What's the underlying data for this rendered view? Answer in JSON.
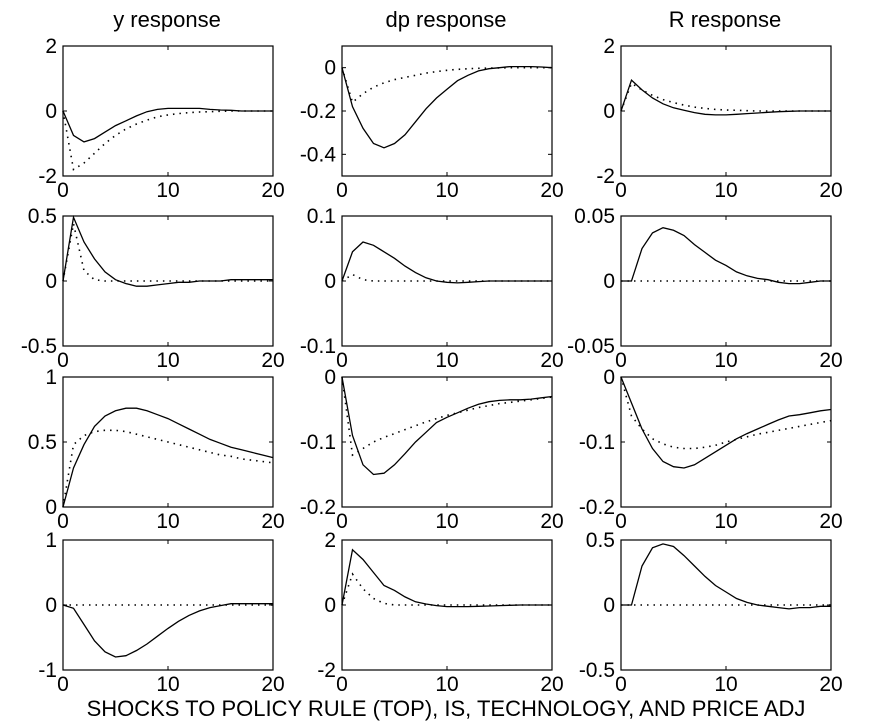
{
  "figure": {
    "column_titles": [
      "y response",
      "dp response",
      "R response"
    ],
    "caption": "SHOCKS TO POLICY RULE (TOP), IS, TECHNOLOGY, AND PRICE ADJ"
  },
  "chart_data": [
    {
      "type": "line",
      "title": "y response",
      "xlim": [
        0,
        20
      ],
      "ylim": [
        -2,
        2
      ],
      "xticks": [
        0,
        10,
        20
      ],
      "yticks": [
        2,
        0,
        -2
      ],
      "ytick_labels": [
        "2",
        "0",
        "-2"
      ],
      "x": [
        0,
        1,
        2,
        3,
        4,
        5,
        6,
        7,
        8,
        9,
        10,
        11,
        12,
        13,
        14,
        15,
        16,
        17,
        18,
        19,
        20
      ],
      "series": [
        {
          "style": "solid",
          "values": [
            0,
            -0.75,
            -0.95,
            -0.85,
            -0.65,
            -0.45,
            -0.3,
            -0.15,
            -0.02,
            0.05,
            0.08,
            0.08,
            0.08,
            0.08,
            0.05,
            0.03,
            0.02,
            0,
            0,
            0,
            0
          ]
        },
        {
          "style": "dotted",
          "values": [
            0,
            -1.8,
            -1.6,
            -1.3,
            -1,
            -0.75,
            -0.55,
            -0.4,
            -0.28,
            -0.18,
            -0.12,
            -0.08,
            -0.05,
            -0.03,
            -0.02,
            -0.01,
            0,
            0,
            0,
            0,
            0
          ]
        }
      ]
    },
    {
      "type": "line",
      "title": "dp response",
      "xlim": [
        0,
        20
      ],
      "ylim": [
        -0.5,
        0.1
      ],
      "xticks": [
        0,
        10,
        20
      ],
      "yticks": [
        0,
        -0.2,
        -0.4
      ],
      "ytick_labels": [
        "0",
        "-0.2",
        "-0.4"
      ],
      "x": [
        0,
        1,
        2,
        3,
        4,
        5,
        6,
        7,
        8,
        9,
        10,
        11,
        12,
        13,
        14,
        15,
        16,
        17,
        18,
        19,
        20
      ],
      "series": [
        {
          "style": "solid",
          "values": [
            0,
            -0.18,
            -0.28,
            -0.35,
            -0.37,
            -0.35,
            -0.31,
            -0.25,
            -0.19,
            -0.14,
            -0.1,
            -0.06,
            -0.035,
            -0.015,
            -0.005,
            0,
            0.005,
            0.005,
            0.005,
            0.003,
            0
          ]
        },
        {
          "style": "dotted",
          "values": [
            0,
            -0.16,
            -0.12,
            -0.09,
            -0.07,
            -0.055,
            -0.045,
            -0.035,
            -0.025,
            -0.018,
            -0.012,
            -0.008,
            -0.005,
            -0.003,
            -0.002,
            -0.001,
            0,
            0,
            0,
            0,
            0
          ]
        }
      ]
    },
    {
      "type": "line",
      "title": "R response",
      "xlim": [
        0,
        20
      ],
      "ylim": [
        -2,
        2
      ],
      "xticks": [
        0,
        10,
        20
      ],
      "yticks": [
        2,
        0,
        -2
      ],
      "ytick_labels": [
        "2",
        "0",
        "-2"
      ],
      "x": [
        0,
        1,
        2,
        3,
        4,
        5,
        6,
        7,
        8,
        9,
        10,
        11,
        12,
        13,
        14,
        15,
        16,
        17,
        18,
        19,
        20
      ],
      "series": [
        {
          "style": "solid",
          "values": [
            0,
            0.95,
            0.65,
            0.4,
            0.22,
            0.1,
            0.02,
            -0.05,
            -0.1,
            -0.12,
            -0.12,
            -0.1,
            -0.08,
            -0.06,
            -0.04,
            -0.02,
            -0.01,
            0,
            0,
            0,
            0
          ]
        },
        {
          "style": "dotted",
          "values": [
            0,
            0.85,
            0.65,
            0.48,
            0.35,
            0.26,
            0.18,
            0.12,
            0.08,
            0.05,
            0.03,
            0.02,
            0.01,
            0,
            0,
            0,
            0,
            0,
            0,
            0,
            0
          ]
        }
      ]
    },
    {
      "type": "line",
      "title": "",
      "xlim": [
        0,
        20
      ],
      "ylim": [
        -0.5,
        0.5
      ],
      "xticks": [
        0,
        10,
        20
      ],
      "yticks": [
        0.5,
        0,
        -0.5
      ],
      "ytick_labels": [
        "0.5",
        "0",
        "-0.5"
      ],
      "x": [
        0,
        1,
        2,
        3,
        4,
        5,
        6,
        7,
        8,
        9,
        10,
        11,
        12,
        13,
        14,
        15,
        16,
        17,
        18,
        19,
        20
      ],
      "series": [
        {
          "style": "solid",
          "values": [
            0,
            0.49,
            0.3,
            0.17,
            0.07,
            0.01,
            -0.02,
            -0.04,
            -0.04,
            -0.03,
            -0.02,
            -0.01,
            -0.01,
            0,
            0,
            0,
            0.01,
            0.01,
            0.01,
            0.01,
            0.01
          ]
        },
        {
          "style": "dotted",
          "values": [
            0,
            0.44,
            0.08,
            0.01,
            0,
            0,
            0,
            0,
            0,
            0,
            0,
            0,
            0,
            0,
            0,
            0,
            0,
            0,
            0,
            0,
            0
          ]
        }
      ]
    },
    {
      "type": "line",
      "title": "",
      "xlim": [
        0,
        20
      ],
      "ylim": [
        -0.1,
        0.1
      ],
      "xticks": [
        0,
        10,
        20
      ],
      "yticks": [
        0.1,
        0,
        -0.1
      ],
      "ytick_labels": [
        "0.1",
        "0",
        "-0.1"
      ],
      "x": [
        0,
        1,
        2,
        3,
        4,
        5,
        6,
        7,
        8,
        9,
        10,
        11,
        12,
        13,
        14,
        15,
        16,
        17,
        18,
        19,
        20
      ],
      "series": [
        {
          "style": "solid",
          "values": [
            0,
            0.045,
            0.06,
            0.055,
            0.045,
            0.035,
            0.023,
            0.013,
            0.005,
            0,
            -0.002,
            -0.003,
            -0.002,
            -0.001,
            0,
            0,
            0,
            0,
            0,
            0,
            0
          ]
        },
        {
          "style": "dotted",
          "values": [
            0,
            0.01,
            0.002,
            0,
            0,
            0,
            0,
            0,
            0,
            0,
            0,
            0,
            0,
            0,
            0,
            0,
            0,
            0,
            0,
            0,
            0
          ]
        }
      ]
    },
    {
      "type": "line",
      "title": "",
      "xlim": [
        0,
        20
      ],
      "ylim": [
        -0.05,
        0.05
      ],
      "xticks": [
        0,
        10,
        20
      ],
      "yticks": [
        0.05,
        0,
        -0.05
      ],
      "ytick_labels": [
        "0.05",
        "0",
        "-0.05"
      ],
      "x": [
        0,
        1,
        2,
        3,
        4,
        5,
        6,
        7,
        8,
        9,
        10,
        11,
        12,
        13,
        14,
        15,
        16,
        17,
        18,
        19,
        20
      ],
      "series": [
        {
          "style": "solid",
          "values": [
            0,
            0,
            0.025,
            0.037,
            0.041,
            0.039,
            0.035,
            0.028,
            0.022,
            0.016,
            0.012,
            0.007,
            0.004,
            0.002,
            0.001,
            -0.001,
            -0.002,
            -0.002,
            -0.001,
            0,
            0
          ]
        },
        {
          "style": "dotted",
          "values": [
            0,
            0,
            0,
            0,
            0,
            0,
            0,
            0,
            0,
            0,
            0,
            0,
            0,
            0,
            0,
            0,
            0,
            0,
            0,
            0,
            0
          ]
        }
      ]
    },
    {
      "type": "line",
      "title": "",
      "xlim": [
        0,
        20
      ],
      "ylim": [
        0,
        1
      ],
      "xticks": [
        0,
        10,
        20
      ],
      "yticks": [
        1,
        0.5,
        0
      ],
      "ytick_labels": [
        "1",
        "0.5",
        "0"
      ],
      "x": [
        0,
        1,
        2,
        3,
        4,
        5,
        6,
        7,
        8,
        9,
        10,
        11,
        12,
        13,
        14,
        15,
        16,
        17,
        18,
        19,
        20
      ],
      "series": [
        {
          "style": "solid",
          "values": [
            0,
            0.3,
            0.48,
            0.62,
            0.7,
            0.74,
            0.76,
            0.76,
            0.74,
            0.71,
            0.68,
            0.64,
            0.6,
            0.56,
            0.52,
            0.49,
            0.46,
            0.44,
            0.42,
            0.4,
            0.38
          ]
        },
        {
          "style": "dotted",
          "values": [
            0,
            0.48,
            0.55,
            0.58,
            0.59,
            0.59,
            0.58,
            0.56,
            0.54,
            0.52,
            0.5,
            0.48,
            0.46,
            0.44,
            0.42,
            0.4,
            0.39,
            0.37,
            0.36,
            0.35,
            0.34
          ]
        }
      ]
    },
    {
      "type": "line",
      "title": "",
      "xlim": [
        0,
        20
      ],
      "ylim": [
        -0.2,
        0
      ],
      "xticks": [
        0,
        10,
        20
      ],
      "yticks": [
        0,
        -0.1,
        -0.2
      ],
      "ytick_labels": [
        "0",
        "-0.1",
        "-0.2"
      ],
      "x": [
        0,
        1,
        2,
        3,
        4,
        5,
        6,
        7,
        8,
        9,
        10,
        11,
        12,
        13,
        14,
        15,
        16,
        17,
        18,
        19,
        20
      ],
      "series": [
        {
          "style": "solid",
          "values": [
            0,
            -0.09,
            -0.135,
            -0.15,
            -0.148,
            -0.135,
            -0.118,
            -0.1,
            -0.085,
            -0.07,
            -0.062,
            -0.055,
            -0.048,
            -0.042,
            -0.038,
            -0.036,
            -0.035,
            -0.035,
            -0.034,
            -0.032,
            -0.03
          ]
        },
        {
          "style": "dotted",
          "values": [
            0,
            -0.12,
            -0.11,
            -0.1,
            -0.093,
            -0.087,
            -0.081,
            -0.075,
            -0.069,
            -0.064,
            -0.059,
            -0.055,
            -0.051,
            -0.047,
            -0.044,
            -0.041,
            -0.039,
            -0.037,
            -0.035,
            -0.033,
            -0.031
          ]
        }
      ]
    },
    {
      "type": "line",
      "title": "",
      "xlim": [
        0,
        20
      ],
      "ylim": [
        -0.2,
        0
      ],
      "xticks": [
        0,
        10,
        20
      ],
      "yticks": [
        0,
        -0.1,
        -0.2
      ],
      "ytick_labels": [
        "0",
        "-0.1",
        "-0.2"
      ],
      "x": [
        0,
        1,
        2,
        3,
        4,
        5,
        6,
        7,
        8,
        9,
        10,
        11,
        12,
        13,
        14,
        15,
        16,
        17,
        18,
        19,
        20
      ],
      "series": [
        {
          "style": "solid",
          "values": [
            0,
            -0.04,
            -0.08,
            -0.11,
            -0.13,
            -0.138,
            -0.14,
            -0.135,
            -0.125,
            -0.115,
            -0.105,
            -0.095,
            -0.087,
            -0.08,
            -0.073,
            -0.066,
            -0.06,
            -0.058,
            -0.055,
            -0.052,
            -0.05
          ]
        },
        {
          "style": "dotted",
          "values": [
            0,
            -0.06,
            -0.08,
            -0.095,
            -0.103,
            -0.108,
            -0.11,
            -0.11,
            -0.108,
            -0.105,
            -0.1,
            -0.096,
            -0.092,
            -0.088,
            -0.085,
            -0.082,
            -0.079,
            -0.076,
            -0.073,
            -0.07,
            -0.067
          ]
        }
      ]
    },
    {
      "type": "line",
      "title": "",
      "xlim": [
        0,
        20
      ],
      "ylim": [
        -1,
        1
      ],
      "xticks": [
        0,
        10,
        20
      ],
      "yticks": [
        1,
        0,
        -1
      ],
      "ytick_labels": [
        "1",
        "0",
        "-1"
      ],
      "x": [
        0,
        1,
        2,
        3,
        4,
        5,
        6,
        7,
        8,
        9,
        10,
        11,
        12,
        13,
        14,
        15,
        16,
        17,
        18,
        19,
        20
      ],
      "series": [
        {
          "style": "solid",
          "values": [
            0,
            -0.05,
            -0.3,
            -0.55,
            -0.72,
            -0.8,
            -0.78,
            -0.7,
            -0.6,
            -0.48,
            -0.36,
            -0.25,
            -0.16,
            -0.09,
            -0.04,
            -0.01,
            0.02,
            0.02,
            0.02,
            0.02,
            0.02
          ]
        },
        {
          "style": "dotted",
          "values": [
            0,
            0,
            0,
            0,
            0,
            0,
            0,
            0,
            0,
            0,
            0,
            0,
            0,
            0,
            0,
            0,
            0,
            0,
            0,
            0,
            0
          ]
        }
      ]
    },
    {
      "type": "line",
      "title": "",
      "xlim": [
        0,
        20
      ],
      "ylim": [
        -2,
        2
      ],
      "xticks": [
        0,
        10,
        20
      ],
      "yticks": [
        2,
        0,
        -2
      ],
      "ytick_labels": [
        "2",
        "0",
        "-2"
      ],
      "x": [
        0,
        1,
        2,
        3,
        4,
        5,
        6,
        7,
        8,
        9,
        10,
        11,
        12,
        13,
        14,
        15,
        16,
        17,
        18,
        19,
        20
      ],
      "series": [
        {
          "style": "solid",
          "values": [
            0,
            1.7,
            1.4,
            1,
            0.6,
            0.45,
            0.25,
            0.1,
            0.03,
            -0.02,
            -0.05,
            -0.05,
            -0.05,
            -0.04,
            -0.03,
            -0.02,
            -0.01,
            0,
            0,
            0,
            0
          ]
        },
        {
          "style": "dotted",
          "values": [
            0,
            0.95,
            0.5,
            0.2,
            0.05,
            0,
            0,
            0,
            0,
            0,
            0,
            0,
            0,
            0,
            0,
            0,
            0,
            0,
            0,
            0,
            0
          ]
        }
      ]
    },
    {
      "type": "line",
      "title": "",
      "xlim": [
        0,
        20
      ],
      "ylim": [
        -0.5,
        0.5
      ],
      "xticks": [
        0,
        10,
        20
      ],
      "yticks": [
        0.5,
        0,
        -0.5
      ],
      "ytick_labels": [
        "0.5",
        "0",
        "-0.5"
      ],
      "x": [
        0,
        1,
        2,
        3,
        4,
        5,
        6,
        7,
        8,
        9,
        10,
        11,
        12,
        13,
        14,
        15,
        16,
        17,
        18,
        19,
        20
      ],
      "series": [
        {
          "style": "solid",
          "values": [
            0,
            0,
            0.3,
            0.44,
            0.47,
            0.45,
            0.38,
            0.3,
            0.22,
            0.15,
            0.1,
            0.05,
            0.02,
            0,
            -0.01,
            -0.02,
            -0.03,
            -0.02,
            -0.02,
            -0.01,
            -0.01
          ]
        },
        {
          "style": "dotted",
          "values": [
            0,
            0,
            0,
            0,
            0,
            0,
            0,
            0,
            0,
            0,
            0,
            0,
            0,
            0,
            0,
            0,
            0,
            0,
            0,
            0,
            0
          ]
        }
      ]
    }
  ]
}
